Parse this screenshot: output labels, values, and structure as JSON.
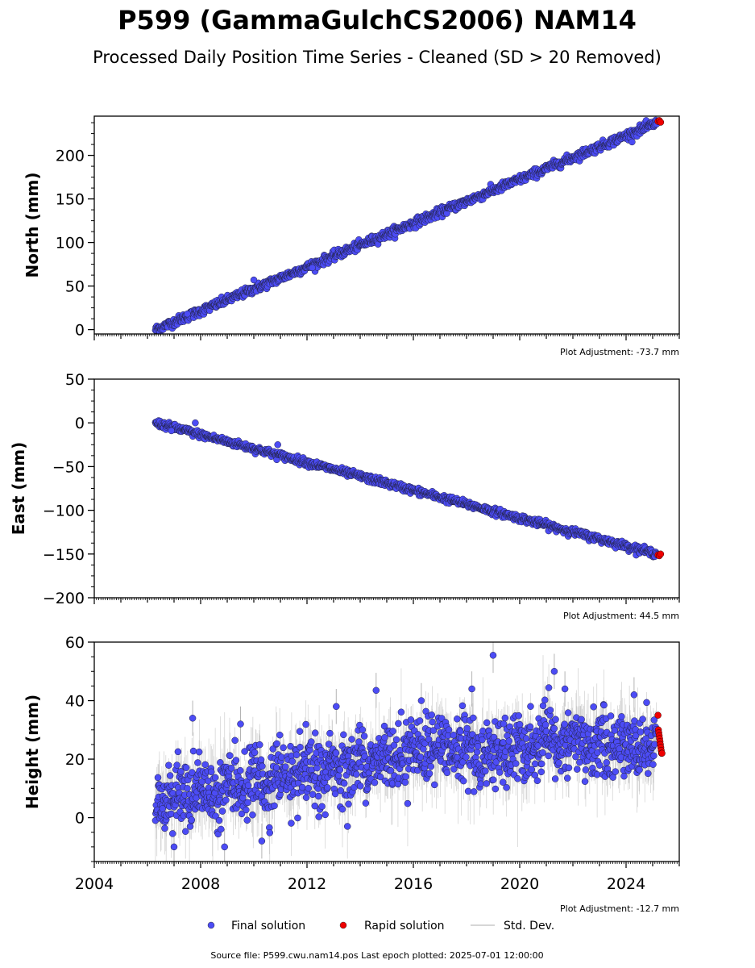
{
  "header": {
    "title": "P599 (GammaGulchCS2006) NAM14",
    "subtitle": "Processed Daily Position Time Series - Cleaned (SD > 20 Removed)"
  },
  "colors": {
    "final": "#4c4cf5",
    "rapid": "#ee0000",
    "stddev": "#b4b4b4"
  },
  "legend": {
    "final_label": "Final solution",
    "rapid_label": "Rapid solution",
    "stddev_label": "Std. Dev."
  },
  "footer": {
    "source": "Source file: P599.cwu.nam14.pos  Last epoch plotted: 2025-07-01 12:00:00"
  },
  "chart_data": [
    {
      "type": "scatter",
      "ylabel": "North (mm)",
      "adjustment": "Plot Adjustment: -73.7 mm",
      "xlim": [
        2004,
        2026
      ],
      "ylim": [
        -5,
        245
      ],
      "yticks": [
        0,
        50,
        100,
        150,
        200
      ],
      "ytick_labels": [
        "0",
        "50",
        "100",
        "150",
        "200"
      ],
      "trend": {
        "x": [
          2006.3,
          2025.3
        ],
        "y": [
          0,
          239
        ]
      },
      "scatter_mm": 2.5,
      "errbar_mm": 1.5,
      "wiggles": [],
      "outliers": [
        {
          "x": 2007.5,
          "y": 18
        },
        {
          "x": 2010.0,
          "y": 57
        },
        {
          "x": 2012.2,
          "y": 71
        }
      ],
      "rapid": {
        "x_start": 2025.2,
        "x_end": 2025.3,
        "y_values": [
          239,
          240,
          238
        ]
      }
    },
    {
      "type": "scatter",
      "ylabel": "East (mm)",
      "adjustment": "Plot Adjustment: 44.5 mm",
      "xlim": [
        2004,
        2026
      ],
      "ylim": [
        -200,
        50
      ],
      "yticks": [
        -200,
        -150,
        -100,
        -50,
        0,
        50
      ],
      "ytick_labels": [
        "−200",
        "−150",
        "−100",
        "−50",
        "0",
        "50"
      ],
      "trend": {
        "x": [
          2006.3,
          2025.3
        ],
        "y": [
          0,
          -151
        ]
      },
      "scatter_mm": 2.0,
      "errbar_mm": 1.5,
      "wiggles": [],
      "outliers": [
        {
          "x": 2007.8,
          "y": 0
        },
        {
          "x": 2010.9,
          "y": -25
        },
        {
          "x": 2006.9,
          "y": -9
        }
      ],
      "rapid": {
        "x_start": 2025.2,
        "x_end": 2025.3,
        "y_values": [
          -151,
          -152,
          -150
        ]
      }
    },
    {
      "type": "scatter",
      "ylabel": "Height (mm)",
      "adjustment": "Plot Adjustment: -12.7 mm",
      "xlim": [
        2004,
        2026
      ],
      "ylim": [
        -15,
        60
      ],
      "yticks": [
        0,
        20,
        40,
        60
      ],
      "ytick_labels": [
        "0",
        "20",
        "40",
        "60"
      ],
      "trend": {
        "x": [
          2006.3,
          2025.3
        ],
        "y": [
          4,
          25
        ]
      },
      "scatter_mm": 5.5,
      "errbar_mm": 6,
      "wiggles": [
        [
          2006.3,
          4
        ],
        [
          2007.0,
          8
        ],
        [
          2007.5,
          6
        ],
        [
          2008.0,
          10
        ],
        [
          2008.5,
          7
        ],
        [
          2009.0,
          13
        ],
        [
          2009.5,
          8
        ],
        [
          2010.0,
          15
        ],
        [
          2010.5,
          10
        ],
        [
          2011.0,
          17
        ],
        [
          2011.5,
          11
        ],
        [
          2012.0,
          17
        ],
        [
          2012.5,
          13
        ],
        [
          2013.0,
          19
        ],
        [
          2013.5,
          15
        ],
        [
          2014.0,
          21
        ],
        [
          2014.5,
          17
        ],
        [
          2015.0,
          23
        ],
        [
          2015.5,
          20
        ],
        [
          2016.0,
          26
        ],
        [
          2016.5,
          21
        ],
        [
          2017.0,
          26
        ],
        [
          2017.5,
          21
        ],
        [
          2018.0,
          25
        ],
        [
          2018.5,
          20
        ],
        [
          2019.0,
          24
        ],
        [
          2019.5,
          20
        ],
        [
          2020.0,
          25
        ],
        [
          2020.5,
          22
        ],
        [
          2021.0,
          27
        ],
        [
          2021.5,
          23
        ],
        [
          2022.0,
          28
        ],
        [
          2022.5,
          22
        ],
        [
          2023.0,
          27
        ],
        [
          2023.5,
          22
        ],
        [
          2024.0,
          27
        ],
        [
          2024.5,
          23
        ],
        [
          2025.0,
          27
        ],
        [
          2025.3,
          25
        ]
      ],
      "outliers": [
        {
          "x": 2019.0,
          "y": 55.5
        },
        {
          "x": 2021.3,
          "y": 50
        },
        {
          "x": 2007.7,
          "y": 34
        },
        {
          "x": 2013.1,
          "y": 38
        },
        {
          "x": 2016.3,
          "y": 40
        },
        {
          "x": 2018.2,
          "y": 44
        },
        {
          "x": 2021.7,
          "y": 44
        },
        {
          "x": 2009.5,
          "y": 32
        },
        {
          "x": 2010.3,
          "y": -8
        },
        {
          "x": 2008.9,
          "y": -10
        },
        {
          "x": 2007.0,
          "y": -10
        },
        {
          "x": 2014.6,
          "y": 43.5
        },
        {
          "x": 2024.3,
          "y": 42
        }
      ],
      "rapid": {
        "x_start": 2025.2,
        "x_end": 2025.35,
        "y_values": [
          35,
          30,
          29,
          28,
          27,
          26,
          25,
          24,
          23,
          22,
          22
        ]
      }
    }
  ],
  "xaxis": {
    "ticks": [
      2004,
      2008,
      2012,
      2016,
      2020,
      2024
    ],
    "tick_labels": [
      "2004",
      "2008",
      "2012",
      "2016",
      "2020",
      "2024"
    ]
  }
}
